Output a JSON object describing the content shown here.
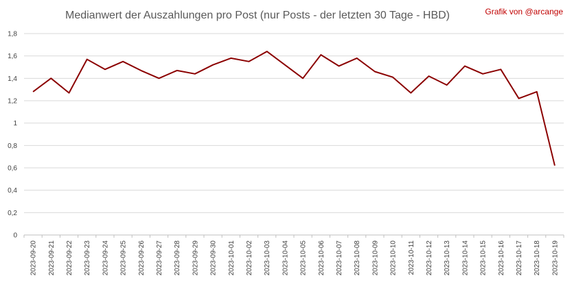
{
  "chart_data": {
    "type": "line",
    "title": "Medianwert der Auszahlungen pro Post (nur Posts - der letzten 30 Tage - HBD)",
    "credit": "Grafik von @arcange",
    "xlabel": "",
    "ylabel": "",
    "ylim": [
      0,
      1.8
    ],
    "y_ticks": [
      "0",
      "0,2",
      "0,4",
      "0,6",
      "0,8",
      "1",
      "1,2",
      "1,4",
      "1,6",
      "1,8"
    ],
    "grid": true,
    "legend": "none",
    "line_color": "#8b0000",
    "categories": [
      "2023-09-20",
      "2023-09-21",
      "2023-09-22",
      "2023-09-23",
      "2023-09-24",
      "2023-09-25",
      "2023-09-26",
      "2023-09-27",
      "2023-09-28",
      "2023-09-29",
      "2023-09-30",
      "2023-10-01",
      "2023-10-02",
      "2023-10-03",
      "2023-10-04",
      "2023-10-05",
      "2023-10-06",
      "2023-10-07",
      "2023-10-08",
      "2023-10-09",
      "2023-10-10",
      "2023-10-11",
      "2023-10-12",
      "2023-10-13",
      "2023-10-14",
      "2023-10-15",
      "2023-10-16",
      "2023-10-17",
      "2023-10-18",
      "2023-10-19"
    ],
    "values": [
      1.28,
      1.4,
      1.27,
      1.57,
      1.48,
      1.55,
      1.47,
      1.4,
      1.47,
      1.44,
      1.52,
      1.58,
      1.55,
      1.64,
      1.52,
      1.4,
      1.61,
      1.51,
      1.58,
      1.46,
      1.41,
      1.27,
      1.42,
      1.34,
      1.51,
      1.44,
      1.48,
      1.22,
      1.28,
      0.62
    ]
  }
}
